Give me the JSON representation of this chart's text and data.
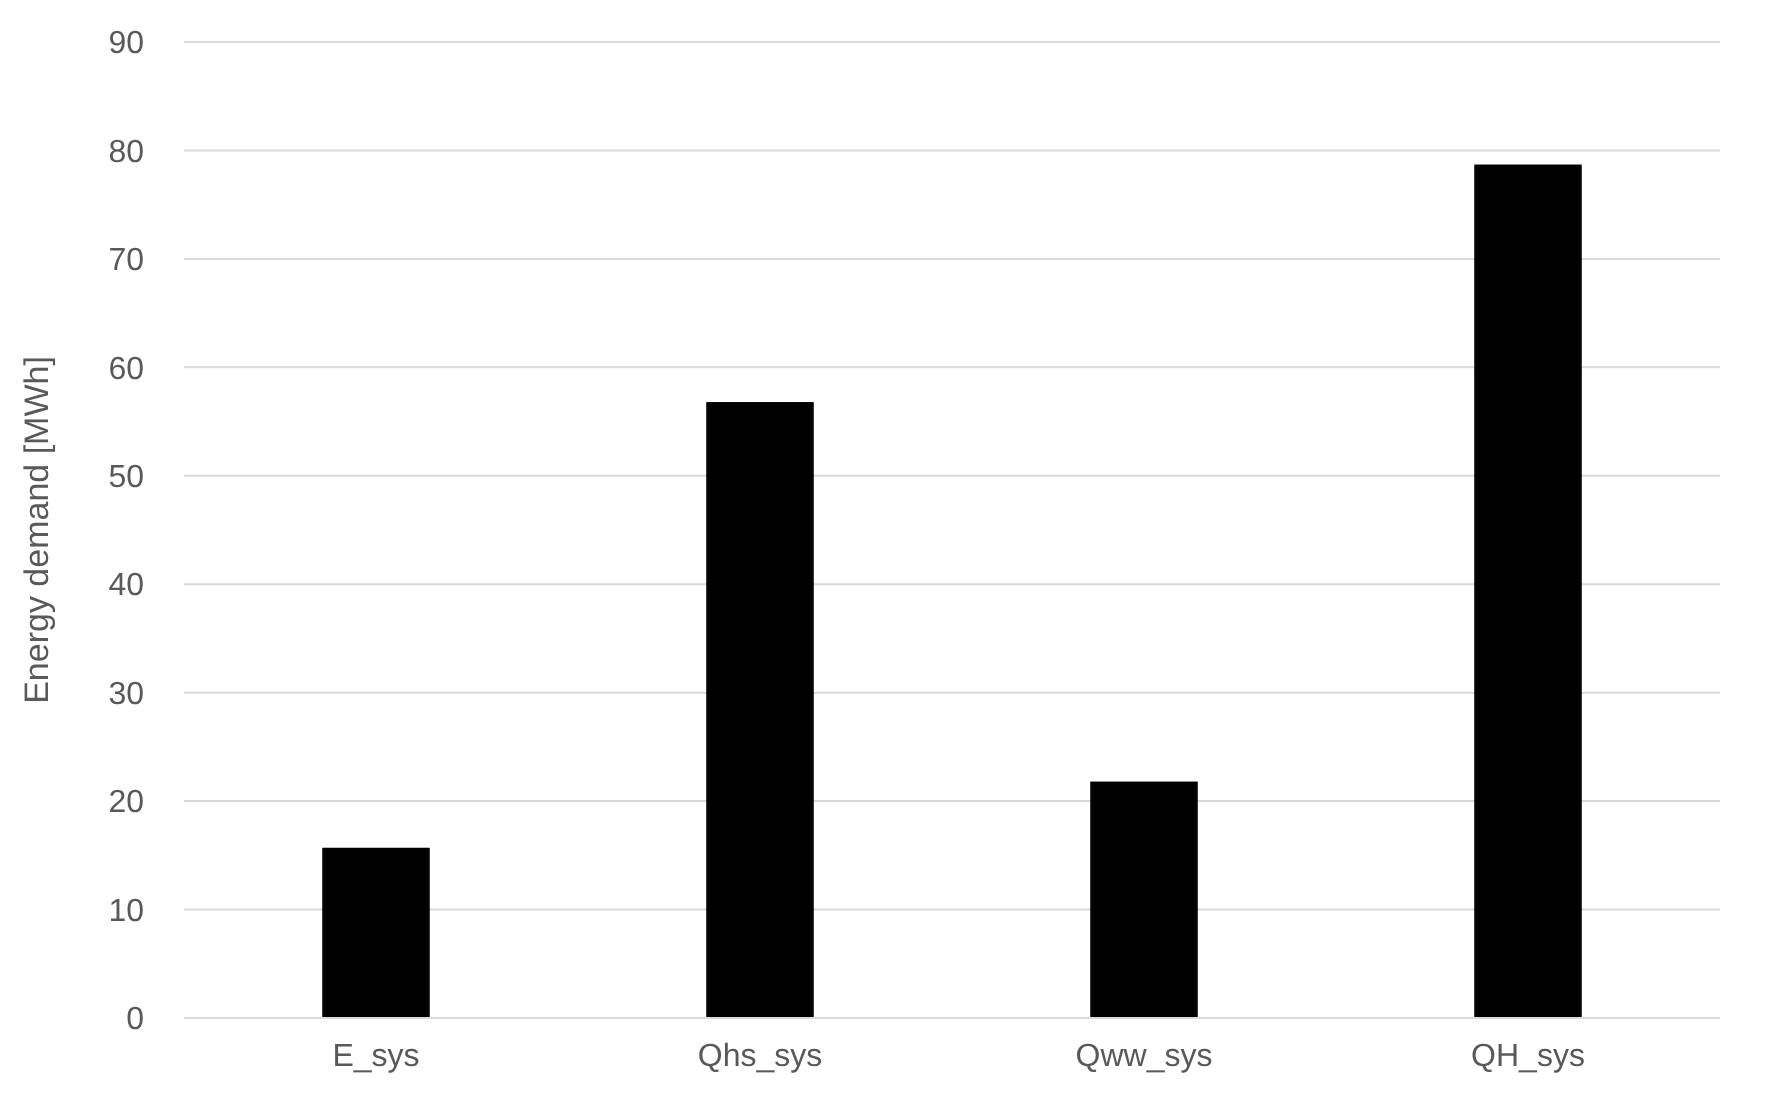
{
  "chart_data": {
    "type": "bar",
    "ylabel": "Energy demand [MWh]",
    "categories": [
      "E_sys",
      "Qhs_sys",
      "Qww_sys",
      "QH_sys"
    ],
    "values": [
      15.7,
      56.8,
      21.8,
      78.7
    ],
    "color": "#000000",
    "ylim": [
      0,
      90
    ],
    "yticks": [
      0,
      10,
      20,
      30,
      40,
      50,
      60,
      70,
      80,
      90
    ],
    "grid": "y"
  }
}
